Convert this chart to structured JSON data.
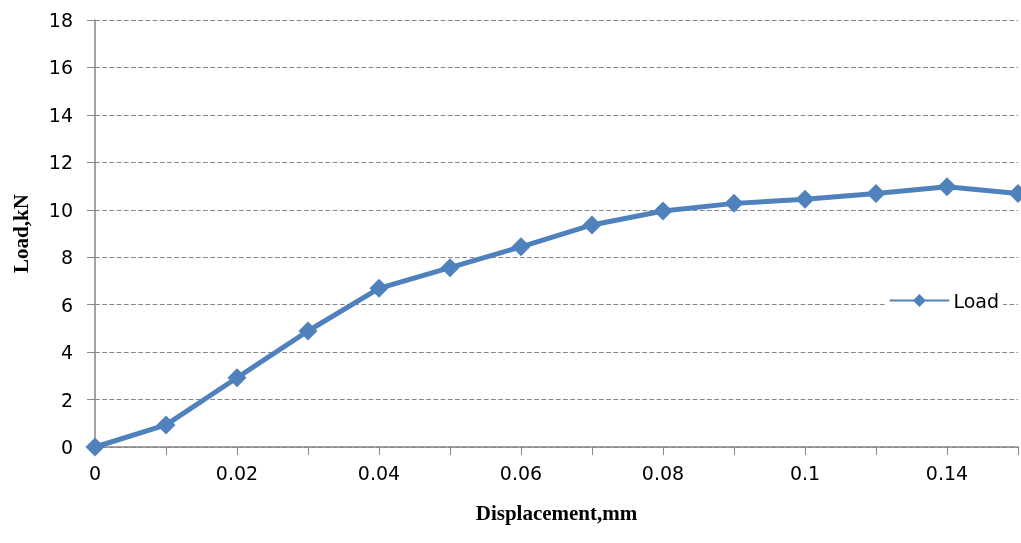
{
  "chart_data": {
    "type": "line",
    "xlabel": "Displacement,mm",
    "ylabel": "Load,kN",
    "categories": [
      "0",
      null,
      "0.02",
      null,
      "0.04",
      null,
      "0.06",
      null,
      "0.08",
      null,
      "0.1",
      null,
      "0.14",
      null
    ],
    "series": [
      {
        "name": "Load",
        "color": "#4f81bd",
        "values": [
          0,
          0.93,
          2.92,
          4.89,
          6.69,
          7.56,
          8.44,
          9.36,
          9.95,
          10.27,
          10.44,
          10.69,
          10.97,
          10.69
        ]
      }
    ],
    "ylim": [
      0,
      18
    ],
    "yticks": [
      0,
      2,
      4,
      6,
      8,
      10,
      12,
      14,
      16,
      18
    ],
    "grid": "y",
    "legend": "right",
    "marker": "diamond",
    "line_style": "solid"
  }
}
